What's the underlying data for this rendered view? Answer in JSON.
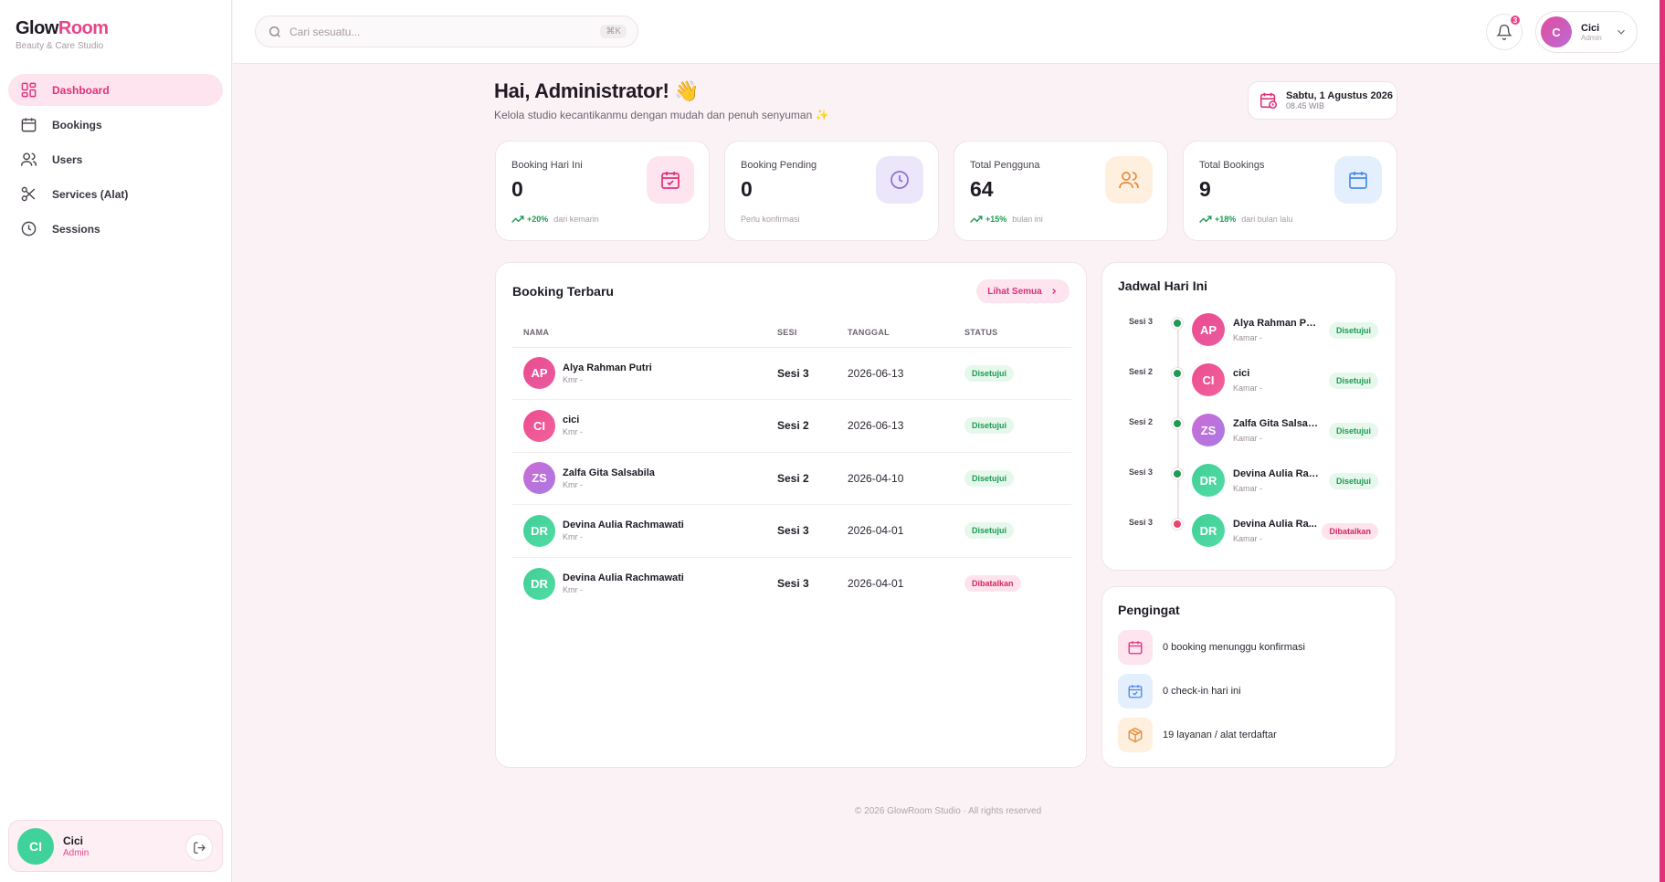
{
  "brand": {
    "name_part1": "Glow",
    "name_part2": "Room",
    "subtitle": "Beauty & Care Studio"
  },
  "sidebar": {
    "items": [
      {
        "label": "Dashboard",
        "icon": "dashboard-icon",
        "active": true
      },
      {
        "label": "Bookings",
        "icon": "calendar-icon",
        "active": false
      },
      {
        "label": "Users",
        "icon": "users-icon",
        "active": false
      },
      {
        "label": "Services (Alat)",
        "icon": "scissors-icon",
        "active": false
      },
      {
        "label": "Sessions",
        "icon": "clock-icon",
        "active": false
      }
    ],
    "user": {
      "initials": "CI",
      "name": "Cici",
      "role": "Admin"
    }
  },
  "topbar": {
    "search_placeholder": "Cari sesuatu...",
    "search_shortcut": "⌘K",
    "notification_count": "3",
    "profile": {
      "initial": "C",
      "name": "Cici",
      "role": "Admin"
    }
  },
  "greeting": {
    "title": "Hai, Administrator! 👋",
    "subtitle": "Kelola studio kecantikanmu dengan mudah dan penuh senyuman ✨"
  },
  "date_chip": {
    "date": "Sabtu, 1 Agustus 2026",
    "time": "08.45 WIB"
  },
  "stats": [
    {
      "label": "Booking Hari Ini",
      "value": "0",
      "trend": "+20%",
      "note": "dari kemarin",
      "icon": "calendar-check-icon",
      "bg": "#fde4ee",
      "fg": "#e0307a"
    },
    {
      "label": "Booking Pending",
      "value": "0",
      "trend": "",
      "note": "Perlu konfirmasi",
      "icon": "clock-icon",
      "bg": "#ece6fb",
      "fg": "#8b6fd6"
    },
    {
      "label": "Total Pengguna",
      "value": "64",
      "trend": "+15%",
      "note": "bulan ini",
      "icon": "users-icon",
      "bg": "#feefdf",
      "fg": "#e58a3a"
    },
    {
      "label": "Total Bookings",
      "value": "9",
      "trend": "+18%",
      "note": "dari bulan lalu",
      "icon": "calendar-icon",
      "bg": "#e4effd",
      "fg": "#4c8ae6"
    }
  ],
  "recent_bookings": {
    "title": "Booking Terbaru",
    "see_all": "Lihat Semua",
    "columns": [
      "NAMA",
      "SESI",
      "TANGGAL",
      "STATUS"
    ],
    "rows": [
      {
        "initials": "AP",
        "name": "Alya Rahman Putri",
        "room": "Kmr -",
        "session": "Sesi 3",
        "date": "2026-06-13",
        "status": "Disetujui"
      },
      {
        "initials": "CI",
        "name": "cici",
        "room": "Kmr -",
        "session": "Sesi 2",
        "date": "2026-06-13",
        "status": "Disetujui"
      },
      {
        "initials": "ZS",
        "name": "Zalfa Gita Salsabila",
        "room": "Kmr -",
        "session": "Sesi 2",
        "date": "2026-04-10",
        "status": "Disetujui"
      },
      {
        "initials": "DR",
        "name": "Devina Aulia Rachmawati",
        "room": "Kmr -",
        "session": "Sesi 3",
        "date": "2026-04-01",
        "status": "Disetujui"
      },
      {
        "initials": "DR",
        "name": "Devina Aulia Rachmawati",
        "room": "Kmr -",
        "session": "Sesi 3",
        "date": "2026-04-01",
        "status": "Dibatalkan"
      }
    ]
  },
  "schedule": {
    "title": "Jadwal Hari Ini",
    "items": [
      {
        "session": "Sesi 3",
        "initials": "AP",
        "name": "Alya Rahman Putri",
        "room": "Kamar -",
        "status": "Disetujui"
      },
      {
        "session": "Sesi 2",
        "initials": "CI",
        "name": "cici",
        "room": "Kamar -",
        "status": "Disetujui"
      },
      {
        "session": "Sesi 2",
        "initials": "ZS",
        "name": "Zalfa Gita Salsabila",
        "room": "Kamar -",
        "status": "Disetujui"
      },
      {
        "session": "Sesi 3",
        "initials": "DR",
        "name": "Devina Aulia Rac...",
        "room": "Kamar -",
        "status": "Disetujui"
      },
      {
        "session": "Sesi 3",
        "initials": "DR",
        "name": "Devina Aulia Ra...",
        "room": "Kamar -",
        "status": "Dibatalkan"
      }
    ]
  },
  "reminders": {
    "title": "Pengingat",
    "items": [
      {
        "text": "0 booking menunggu konfirmasi",
        "icon": "calendar-icon"
      },
      {
        "text": "0 check-in hari ini",
        "icon": "calendar-check-icon"
      },
      {
        "text": "19 layanan / alat terdaftar",
        "icon": "box-icon"
      }
    ]
  },
  "footer": "© 2026 GlowRoom Studio · All rights reserved",
  "colors": {
    "accent": "#e8458b",
    "success": "#1e9a54",
    "danger": "#d7275f"
  }
}
